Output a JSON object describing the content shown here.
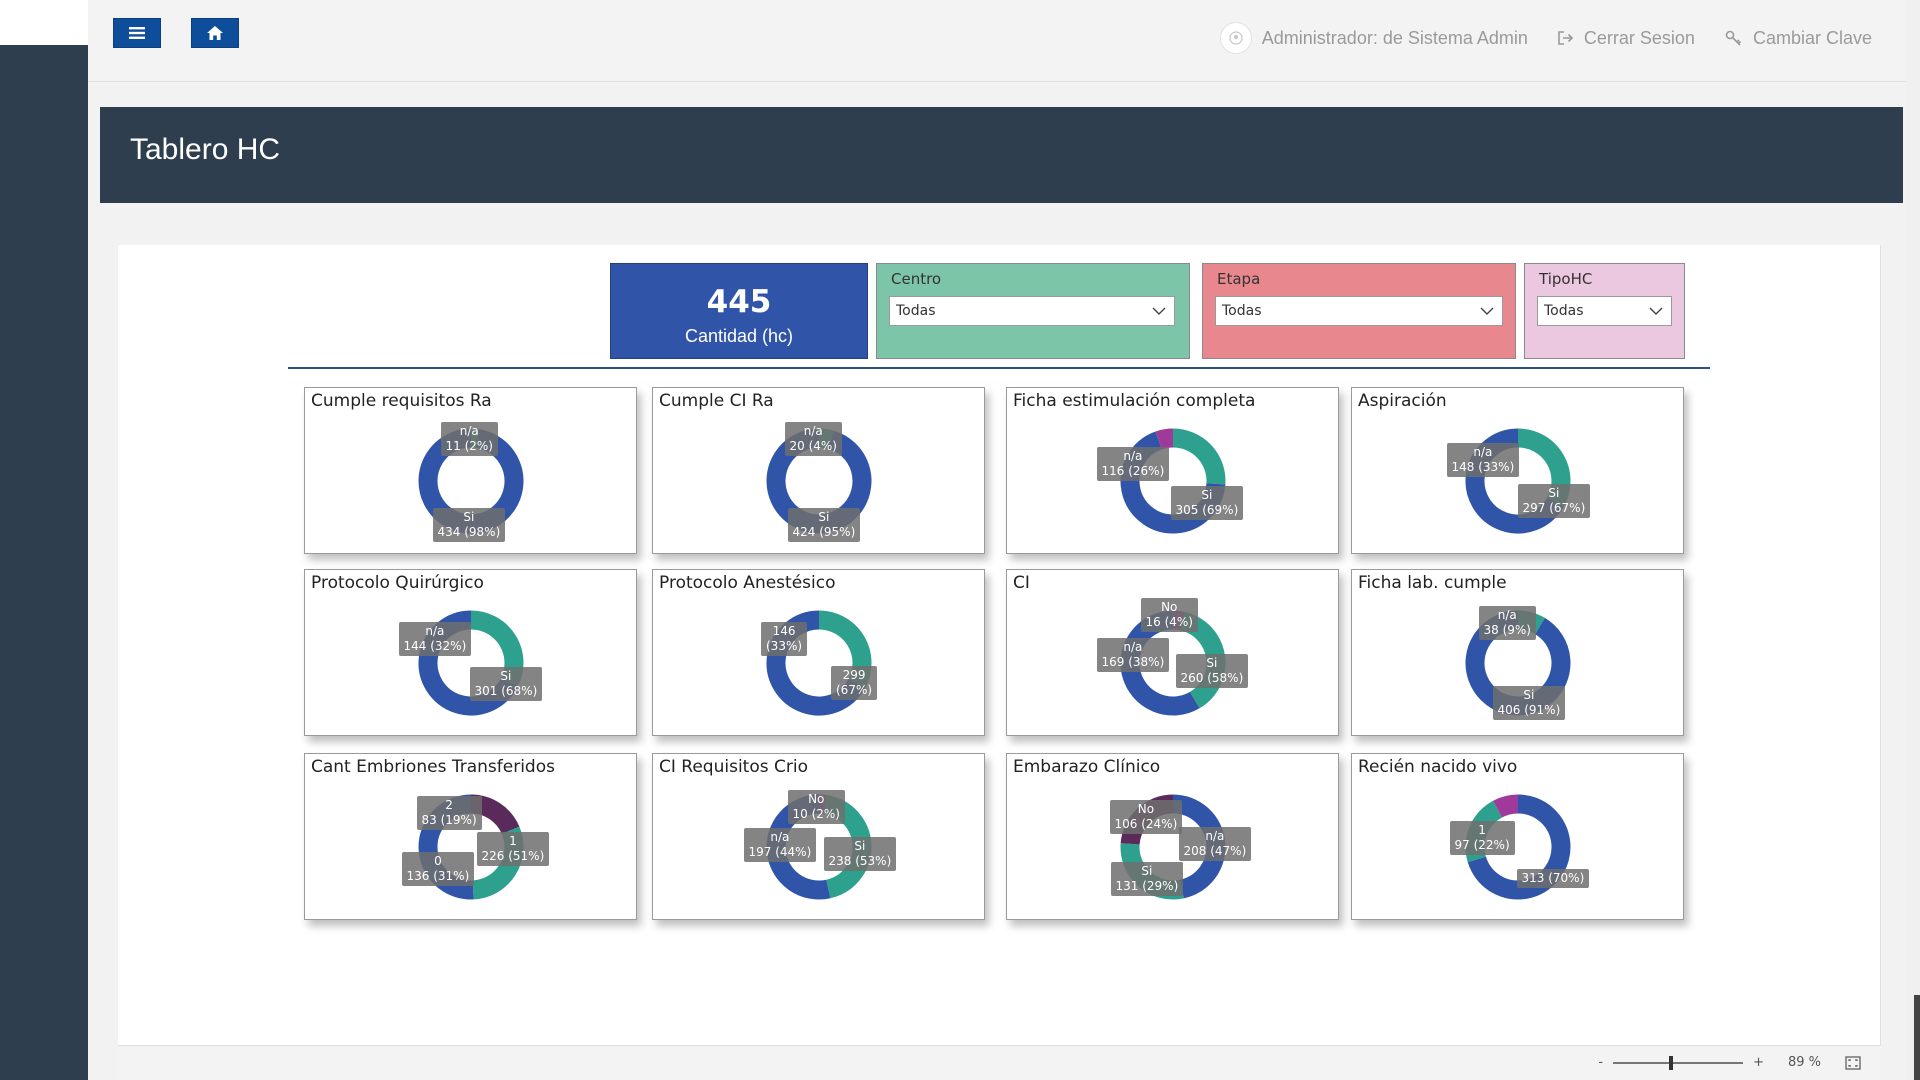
{
  "topbar": {
    "user_label": "Administrador: de Sistema Admin",
    "logout_label": "Cerrar Sesion",
    "change_password_label": "Cambiar Clave"
  },
  "header": {
    "title": "Tablero HC"
  },
  "kpi": {
    "value": "445",
    "label": "Cantidad (hc)"
  },
  "slicers": [
    {
      "title": "Centro",
      "value": "Todas",
      "color": "#7cc5a8"
    },
    {
      "title": "Etapa",
      "value": "Todas",
      "color": "#e8888e"
    },
    {
      "title": "TipoHC",
      "value": "Todas",
      "color": "#ecc8e0"
    }
  ],
  "zoom": {
    "minus": "-",
    "plus": "+",
    "level": "89 %"
  },
  "colors": {
    "blue": "#3055a8",
    "teal": "#2ea08e",
    "magenta": "#8a3a8a",
    "purple": "#5a2a5a"
  },
  "chart_data": [
    {
      "type": "pie",
      "title": "Cumple requisitos Ra",
      "slices": [
        {
          "label": "n/a",
          "value": 11,
          "text": "n/a\n11 (2%)",
          "color": "#2ea08e"
        },
        {
          "label": "Si",
          "value": 434,
          "text": "Si\n434 (98%)",
          "color": "#3055a8"
        }
      ]
    },
    {
      "type": "pie",
      "title": "Cumple CI Ra",
      "slices": [
        {
          "label": "n/a",
          "value": 20,
          "text": "n/a\n20 (4%)",
          "color": "#2ea08e"
        },
        {
          "label": "Si",
          "value": 424,
          "text": "Si\n424 (95%)",
          "color": "#3055a8"
        }
      ]
    },
    {
      "type": "pie",
      "title": "Ficha estimulación completa",
      "slices": [
        {
          "label": "n/a",
          "value": 116,
          "text": "n/a\n116 (26%)",
          "color": "#2ea08e"
        },
        {
          "label": "Si",
          "value": 305,
          "text": "Si\n305 (69%)",
          "color": "#3055a8"
        },
        {
          "label": "",
          "value": 24,
          "text": "",
          "color": "#a03a9a"
        }
      ]
    },
    {
      "type": "pie",
      "title": "Aspiración",
      "slices": [
        {
          "label": "n/a",
          "value": 148,
          "text": "n/a\n148 (33%)",
          "color": "#2ea08e"
        },
        {
          "label": "Si",
          "value": 297,
          "text": "Si\n297 (67%)",
          "color": "#3055a8"
        }
      ]
    },
    {
      "type": "pie",
      "title": "Protocolo Quirúrgico",
      "slices": [
        {
          "label": "n/a",
          "value": 144,
          "text": "n/a\n144 (32%)",
          "color": "#2ea08e"
        },
        {
          "label": "Si",
          "value": 301,
          "text": "Si\n301 (68%)",
          "color": "#3055a8"
        }
      ]
    },
    {
      "type": "pie",
      "title": "Protocolo Anestésico",
      "slices": [
        {
          "label": "146",
          "value": 146,
          "text": "146\n(33%)",
          "color": "#2ea08e"
        },
        {
          "label": "299",
          "value": 299,
          "text": "299\n(67%)",
          "color": "#3055a8"
        }
      ]
    },
    {
      "type": "pie",
      "title": "CI",
      "slices": [
        {
          "label": "No",
          "value": 16,
          "text": "No\n16 (4%)",
          "color": "#a03a9a"
        },
        {
          "label": "n/a",
          "value": 169,
          "text": "n/a\n169 (38%)",
          "color": "#2ea08e"
        },
        {
          "label": "Si",
          "value": 260,
          "text": "Si\n260 (58%)",
          "color": "#3055a8"
        }
      ]
    },
    {
      "type": "pie",
      "title": "Ficha lab. cumple",
      "slices": [
        {
          "label": "n/a",
          "value": 38,
          "text": "n/a\n38 (9%)",
          "color": "#2ea08e"
        },
        {
          "label": "Si",
          "value": 406,
          "text": "Si\n406 (91%)",
          "color": "#3055a8"
        }
      ]
    },
    {
      "type": "pie",
      "title": "Cant Embriones Transferidos",
      "slices": [
        {
          "label": "2",
          "value": 83,
          "text": "2\n83 (19%)",
          "color": "#5a2a5a"
        },
        {
          "label": "0",
          "value": 136,
          "text": "0\n136 (31%)",
          "color": "#2ea08e"
        },
        {
          "label": "1",
          "value": 226,
          "text": "1\n226 (51%)",
          "color": "#3055a8"
        }
      ]
    },
    {
      "type": "pie",
      "title": "CI Requisitos Crio",
      "slices": [
        {
          "label": "No",
          "value": 10,
          "text": "No\n10 (2%)",
          "color": "#a03a9a"
        },
        {
          "label": "n/a",
          "value": 197,
          "text": "n/a\n197 (44%)",
          "color": "#2ea08e"
        },
        {
          "label": "Si",
          "value": 238,
          "text": "Si\n238 (53%)",
          "color": "#3055a8"
        }
      ]
    },
    {
      "type": "pie",
      "title": "Embarazo Clínico",
      "slices": [
        {
          "label": "n/a",
          "value": 208,
          "text": "n/a\n208 (47%)",
          "color": "#3055a8"
        },
        {
          "label": "Si",
          "value": 131,
          "text": "Si\n131 (29%)",
          "color": "#2ea08e"
        },
        {
          "label": "No",
          "value": 106,
          "text": "No\n106 (24%)",
          "color": "#5a2a5a"
        }
      ]
    },
    {
      "type": "pie",
      "title": "Recién nacido vivo",
      "slices": [
        {
          "label": "",
          "value": 313,
          "text": "313 (70%)",
          "color": "#3055a8"
        },
        {
          "label": "1",
          "value": 97,
          "text": "1\n97 (22%)",
          "color": "#2ea08e"
        },
        {
          "label": "",
          "value": 35,
          "text": "",
          "color": "#a03a9a"
        }
      ]
    }
  ]
}
